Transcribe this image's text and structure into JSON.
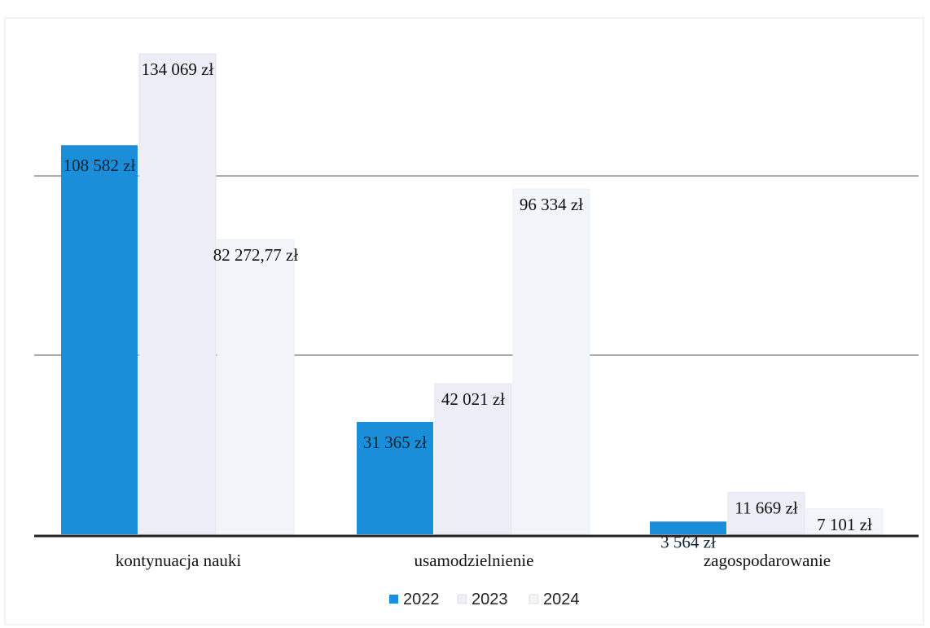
{
  "chart_data": {
    "type": "bar",
    "categories": [
      "kontynuacja nauki",
      "usamodzielnienie",
      "zagospodarowanie"
    ],
    "series": [
      {
        "name": "2022",
        "values": [
          108582,
          31365,
          3564
        ],
        "labels": [
          "108 582 zł",
          "31 365 zł",
          "3 564 zł"
        ]
      },
      {
        "name": "2023",
        "values": [
          134069,
          42021,
          11669
        ],
        "labels": [
          "134 069 zł",
          "42 021 zł",
          "11 669 zł"
        ]
      },
      {
        "name": "2024",
        "values": [
          82272.77,
          96334,
          7101
        ],
        "labels": [
          "82 272,77 zł",
          "96 334 zł",
          "7 101 zł"
        ]
      }
    ],
    "colors": [
      "#1a8ed8",
      "#eeeef8",
      "#f2f6fb"
    ],
    "ylim": [
      0,
      140000
    ],
    "grid": true,
    "legend": "bottom"
  }
}
